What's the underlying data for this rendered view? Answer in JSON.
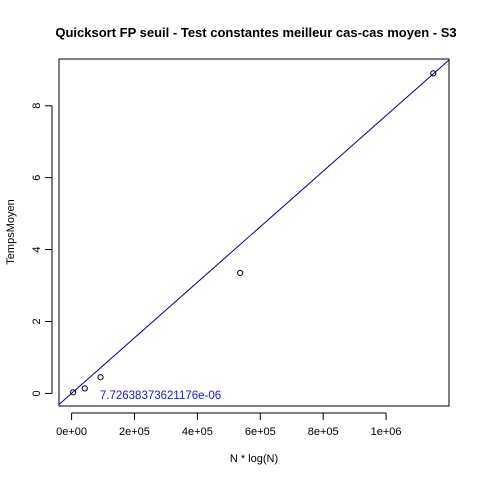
{
  "chart_data": {
    "type": "scatter",
    "title": "Quicksort FP seuil - Test constantes meilleur cas-cas moyen - S3",
    "xlabel": "N * log(N)",
    "ylabel": "TempsMoyen",
    "xlim": [
      -40000,
      1200000
    ],
    "ylim": [
      -0.35,
      9.3
    ],
    "x_ticks": [
      0,
      200000,
      400000,
      600000,
      800000,
      1000000
    ],
    "x_tick_labels": [
      "0e+00",
      "2e+05",
      "4e+05",
      "6e+05",
      "8e+05",
      "1e+06"
    ],
    "y_ticks": [
      0,
      2,
      4,
      6,
      8
    ],
    "y_tick_labels": [
      "0",
      "2",
      "4",
      "6",
      "8"
    ],
    "points": [
      {
        "x": 5000,
        "y": 0.03
      },
      {
        "x": 42000,
        "y": 0.14
      },
      {
        "x": 92000,
        "y": 0.45
      },
      {
        "x": 536000,
        "y": 3.35
      },
      {
        "x": 1150000,
        "y": 8.9
      }
    ],
    "fit_line": {
      "slope": 7.72638373621176e-06,
      "intercept": 0,
      "color": "#00008b"
    },
    "annotation": {
      "text": "7.72638373621176e-06",
      "x": 90000,
      "y": -0.05,
      "color": "#1a1acc"
    },
    "grid": false,
    "legend": "none"
  }
}
